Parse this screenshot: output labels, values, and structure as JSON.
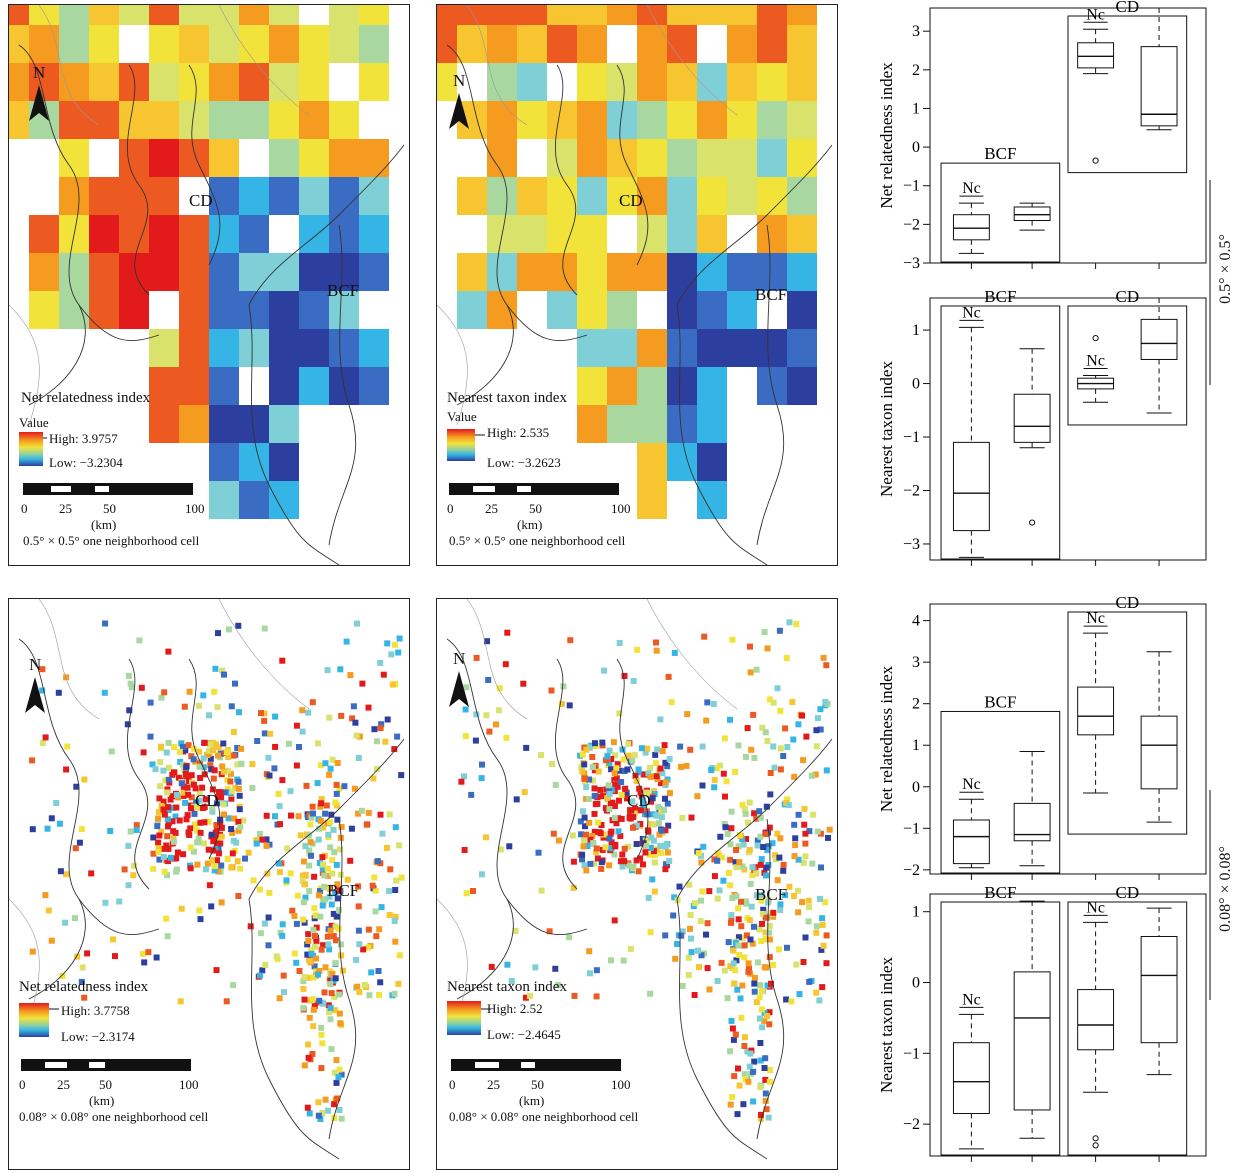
{
  "colors": {
    "high": "#e31a1c",
    "mid": "#f2e33a",
    "low": "#2c3f9e",
    "accent": "#1a9cd8"
  },
  "maps": [
    {
      "id": "A",
      "index_label": "Net relatedness index",
      "value_label": "Value",
      "high": "High: 3.9757",
      "low": "Low: −3.2304",
      "north": "N",
      "cd": "CD",
      "bcf": "BCF",
      "cell_label": "0.5° × 0.5° one neighborhood cell",
      "scale_ticks": [
        "0",
        "25",
        "50",
        "100"
      ],
      "scale_unit": "(km)"
    },
    {
      "id": "B",
      "index_label": "Nearest taxon index",
      "value_label": "Value",
      "high": "High: 2.535",
      "low": "Low: −3.2623",
      "north": "N",
      "cd": "CD",
      "bcf": "BCF",
      "cell_label": "0.5° × 0.5° one neighborhood cell",
      "scale_ticks": [
        "0",
        "25",
        "50",
        "100"
      ],
      "scale_unit": "(km)"
    },
    {
      "id": "C",
      "index_label": "Net relatedness index",
      "value_label": "",
      "high": "High: 3.7758",
      "low": "Low: −2.3174",
      "north": "N",
      "cd": "CD",
      "bcf": "BCF",
      "cell_label": "0.08° × 0.08° one neighborhood cell",
      "scale_ticks": [
        "0",
        "25",
        "50",
        "100"
      ],
      "scale_unit": "(km)"
    },
    {
      "id": "D",
      "index_label": "Nearest taxon index",
      "value_label": "",
      "high": "High: 2.52",
      "low": "Low: −2.4645",
      "north": "N",
      "cd": "CD",
      "bcf": "BCF",
      "cell_label": "0.08° × 0.08° one neighborhood cell",
      "scale_ticks": [
        "0",
        "25",
        "50",
        "100"
      ],
      "scale_unit": "(km)"
    }
  ],
  "side_labels": {
    "coarse": "0.5° × 0.5°",
    "fine": "0.08° × 0.08°"
  },
  "chart_data": [
    {
      "type": "box",
      "ylabel": "Net relatedness index",
      "ylim": [
        -3,
        3.6
      ],
      "yticks": [
        -3,
        -2,
        -1,
        0,
        1,
        2,
        3
      ],
      "groups": [
        {
          "name": "BCF",
          "nc_label": "Nc"
        },
        {
          "name": "CD",
          "nc_label": "Nc"
        }
      ],
      "boxes": [
        {
          "group": "BCF",
          "min": -2.75,
          "q1": -2.4,
          "median": -2.1,
          "q3": -1.75,
          "max": -1.45,
          "outliers": []
        },
        {
          "group": "BCF",
          "min": -2.15,
          "q1": -1.9,
          "median": -1.75,
          "q3": -1.55,
          "max": -1.45,
          "outliers": []
        },
        {
          "group": "CD",
          "min": 1.9,
          "q1": 2.05,
          "median": 2.35,
          "q3": 2.7,
          "max": 3.05,
          "outliers": [
            -0.35
          ]
        },
        {
          "group": "CD",
          "min": 0.45,
          "q1": 0.55,
          "median": 0.85,
          "q3": 2.6,
          "max": 3.6,
          "outliers": []
        }
      ]
    },
    {
      "type": "box",
      "ylabel": "Nearest taxon index",
      "ylim": [
        -3.3,
        1.6
      ],
      "yticks": [
        -3,
        -2,
        -1,
        0,
        1
      ],
      "groups": [
        {
          "name": "BCF",
          "nc_label": "Nc"
        },
        {
          "name": "CD",
          "nc_label": "Nc"
        }
      ],
      "boxes": [
        {
          "group": "BCF",
          "min": -3.25,
          "q1": -2.75,
          "median": -2.05,
          "q3": -1.1,
          "max": 1.05,
          "outliers": []
        },
        {
          "group": "BCF",
          "min": -1.2,
          "q1": -1.1,
          "median": -0.8,
          "q3": -0.2,
          "max": 0.65,
          "outliers": [
            -2.6
          ]
        },
        {
          "group": "CD",
          "min": -0.35,
          "q1": -0.1,
          "median": 0.0,
          "q3": 0.1,
          "max": 0.15,
          "outliers": [
            0.85
          ]
        },
        {
          "group": "CD",
          "min": -0.55,
          "q1": 0.45,
          "median": 0.75,
          "q3": 1.2,
          "max": 1.6,
          "outliers": []
        }
      ]
    },
    {
      "type": "box",
      "ylabel": "Net relatedness index",
      "ylim": [
        -2.1,
        4.4
      ],
      "yticks": [
        -2,
        -1,
        0,
        1,
        2,
        3,
        4
      ],
      "groups": [
        {
          "name": "BCF",
          "nc_label": "Nc"
        },
        {
          "name": "CD",
          "nc_label": "Nc"
        }
      ],
      "boxes": [
        {
          "group": "BCF",
          "min": -1.95,
          "q1": -1.85,
          "median": -1.2,
          "q3": -0.8,
          "max": -0.3,
          "outliers": []
        },
        {
          "group": "BCF",
          "min": -1.9,
          "q1": -1.3,
          "median": -1.15,
          "q3": -0.4,
          "max": 0.85,
          "outliers": []
        },
        {
          "group": "CD",
          "min": -0.15,
          "q1": 1.25,
          "median": 1.7,
          "q3": 2.4,
          "max": 3.7,
          "outliers": []
        },
        {
          "group": "CD",
          "min": -0.85,
          "q1": -0.05,
          "median": 1.0,
          "q3": 1.7,
          "max": 3.25,
          "outliers": []
        }
      ]
    },
    {
      "type": "box",
      "ylabel": "Nearest taxon index",
      "ylim": [
        -2.45,
        1.25
      ],
      "yticks": [
        -2,
        -1,
        0,
        1
      ],
      "groups": [
        {
          "name": "BCF",
          "nc_label": "Nc"
        },
        {
          "name": "CD",
          "nc_label": "Nc"
        }
      ],
      "boxes": [
        {
          "group": "BCF",
          "min": -2.35,
          "q1": -1.85,
          "median": -1.4,
          "q3": -0.85,
          "max": -0.45,
          "outliers": []
        },
        {
          "group": "BCF",
          "min": -2.2,
          "q1": -1.8,
          "median": -0.5,
          "q3": 0.15,
          "max": 1.15,
          "outliers": []
        },
        {
          "group": "CD",
          "min": -1.55,
          "q1": -0.95,
          "median": -0.6,
          "q3": -0.1,
          "max": 0.85,
          "outliers": [
            -2.2,
            -2.3
          ]
        },
        {
          "group": "CD",
          "min": -1.3,
          "q1": -0.85,
          "median": 0.1,
          "q3": 0.65,
          "max": 1.05,
          "outliers": []
        }
      ]
    }
  ]
}
